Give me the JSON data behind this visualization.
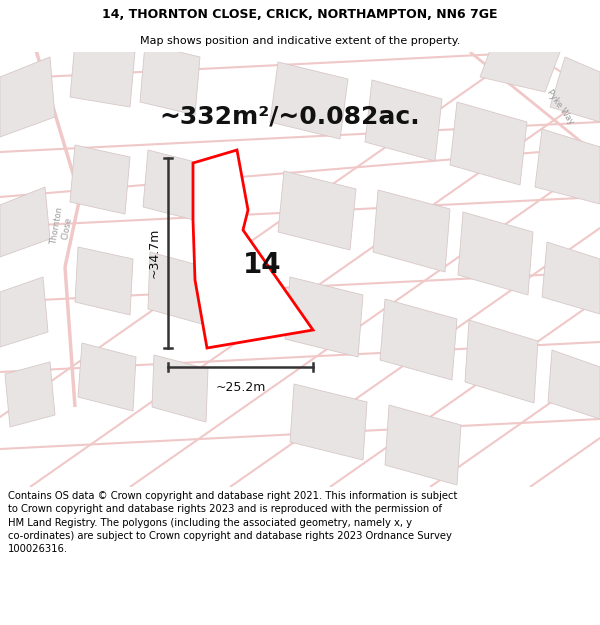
{
  "title_line1": "14, THORNTON CLOSE, CRICK, NORTHAMPTON, NN6 7GE",
  "title_line2": "Map shows position and indicative extent of the property.",
  "area_text": "~332m²/~0.082ac.",
  "dim_height": "~34.7m",
  "dim_width": "~25.2m",
  "label_number": "14",
  "footer": "Contains OS data © Crown copyright and database right 2021. This information is subject to Crown copyright and database rights 2023 and is reproduced with the permission of HM Land Registry. The polygons (including the associated geometry, namely x, y co-ordinates) are subject to Crown copyright and database rights 2023 Ordnance Survey 100026316.",
  "bg_color": "#ffffff",
  "map_bg": "#f8f5f5",
  "road_color": "#f0c8c8",
  "block_fill": "#e8e4e4",
  "block_edge": "#d8c8c8",
  "plot_edge": "#ff0000",
  "plot_fill": "#ffffff",
  "dim_color": "#333333",
  "text_color": "#666666",
  "title_fontsize": 9,
  "subtitle_fontsize": 8,
  "area_fontsize": 18,
  "label_fontsize": 20,
  "dim_fontsize": 9,
  "footer_fontsize": 7.2
}
